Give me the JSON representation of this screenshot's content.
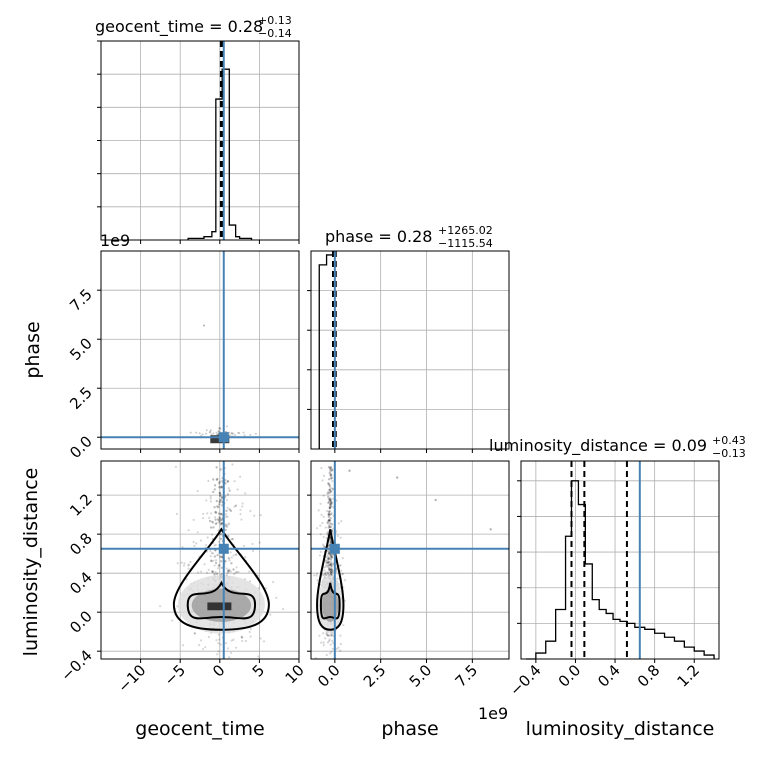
{
  "chart_data": {
    "type": "corner",
    "parameters": [
      "geocent_time",
      "phase",
      "luminosity_distance"
    ],
    "truth": {
      "geocent_time": 0.5,
      "phase": 0.0,
      "luminosity_distance": 0.65
    },
    "titles": [
      {
        "param": "geocent_time",
        "label": "geocent_time = 0.28",
        "plus": "+0.13",
        "minus": "−0.14"
      },
      {
        "param": "phase",
        "label": "phase = 0.28",
        "plus": "+1265.02",
        "minus": "−1115.54"
      },
      {
        "param": "luminosity_distance",
        "label": "luminosity_distance = 0.09",
        "plus": "+0.43",
        "minus": "−0.13"
      }
    ],
    "offset_texts": {
      "phase_y": "1e9",
      "phase_x": "1e9"
    },
    "axes": {
      "geocent_time": {
        "range": [
          -15,
          10
        ],
        "ticks": [
          -10,
          -5,
          0,
          5,
          10
        ],
        "tick_labels": [
          "−10",
          "−5",
          "0",
          "5",
          "10"
        ]
      },
      "phase_x": {
        "range": [
          -1.3,
          9.5
        ],
        "ticks": [
          0.0,
          2.5,
          5.0,
          7.5
        ],
        "tick_labels": [
          "0.0",
          "2.5",
          "5.0",
          "7.5"
        ]
      },
      "phase_y": {
        "range": [
          -0.6,
          9.5
        ],
        "ticks": [
          0.0,
          2.5,
          5.0,
          7.5
        ],
        "tick_labels": [
          "0.0",
          "2.5",
          "5.0",
          "7.5"
        ]
      },
      "luminosity_distance_x": {
        "range": [
          -0.55,
          1.45
        ],
        "ticks": [
          -0.4,
          0.0,
          0.4,
          0.8,
          1.2
        ],
        "tick_labels": [
          "−0.4",
          "0.0",
          "0.4",
          "0.8",
          "1.2"
        ]
      },
      "luminosity_distance_y": {
        "range": [
          -0.48,
          1.55
        ],
        "ticks": [
          -0.4,
          0.0,
          0.4,
          0.8,
          1.2
        ],
        "tick_labels": [
          "−0.4",
          "0.0",
          "0.4",
          "0.8",
          "1.2"
        ]
      }
    },
    "axis_labels": {
      "x_geocent_time": "geocent_time",
      "x_phase": "phase",
      "x_luminosity_distance": "luminosity_distance",
      "y_phase": "phase",
      "y_luminosity_distance": "luminosity_distance"
    },
    "hist_geocent_time": {
      "edges": [
        -4,
        -3,
        -2,
        -1,
        -0.5,
        0.3,
        1.2,
        2,
        2.5,
        4
      ],
      "counts": [
        0.01,
        0.01,
        0.02,
        0.05,
        0.85,
        1.03,
        0.09,
        0.02,
        0.01
      ],
      "quantiles": [
        0.14,
        0.28,
        0.41
      ],
      "ylim": [
        0,
        1.2
      ]
    },
    "hist_phase": {
      "edges": [
        -0.85,
        -0.45,
        0.0
      ],
      "counts": [
        0.93,
        0.98
      ],
      "quantiles": [
        -0.1,
        0.0,
        0.05
      ],
      "ylim": [
        0,
        1.0
      ]
    },
    "hist_luminosity_distance": {
      "edges": [
        -0.5,
        -0.4,
        -0.3,
        -0.2,
        -0.1,
        -0.04,
        0.03,
        0.1,
        0.17,
        0.24,
        0.31,
        0.38,
        0.45,
        0.52,
        0.6,
        0.7,
        0.8,
        0.9,
        1.0,
        1.1,
        1.2,
        1.3,
        1.4
      ],
      "counts": [
        0.0,
        0.03,
        0.09,
        0.25,
        0.62,
        0.9,
        0.78,
        0.48,
        0.3,
        0.25,
        0.23,
        0.2,
        0.19,
        0.18,
        0.16,
        0.15,
        0.13,
        0.11,
        0.09,
        0.06,
        0.04,
        0.02
      ],
      "quantiles": [
        -0.04,
        0.09,
        0.52
      ],
      "ylim": [
        0,
        1.0
      ]
    }
  }
}
